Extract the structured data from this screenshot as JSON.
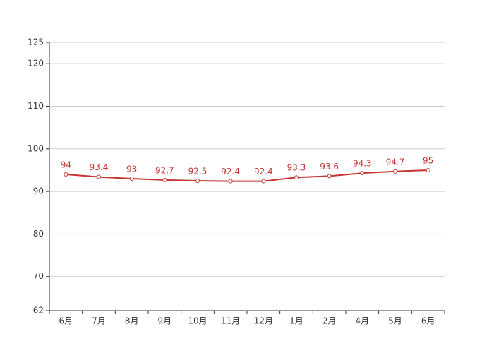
{
  "chart_data": {
    "type": "line",
    "categories": [
      "6月",
      "7月",
      "8月",
      "9月",
      "10月",
      "11月",
      "12月",
      "1月",
      "2月",
      "4月",
      "5月",
      "6月"
    ],
    "series": [
      {
        "color": "#c23531",
        "values": [
          94,
          93.4,
          93,
          92.7,
          92.5,
          92.4,
          92.4,
          93.3,
          93.6,
          94.3,
          94.7,
          95
        ]
      }
    ],
    "ylim": [
      62,
      125
    ],
    "yticks": [
      62,
      70,
      80,
      90,
      100,
      110,
      120,
      125
    ],
    "grid": true
  }
}
